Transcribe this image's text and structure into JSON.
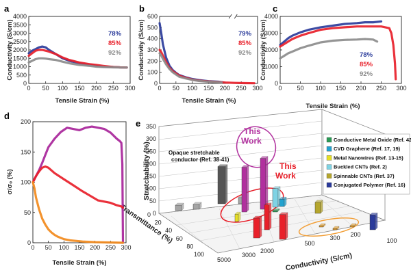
{
  "chart_data": [
    {
      "panel": "a",
      "type": "line",
      "xlabel": "Tensile Strain (%)",
      "ylabel": "Conductivity (S/cm)",
      "xlim": [
        0,
        300
      ],
      "ylim": [
        0,
        4000
      ],
      "xticks": [
        "0",
        "50",
        "100",
        "150",
        "200",
        "250",
        "300"
      ],
      "yticks": [
        "0",
        "500",
        "1000",
        "1500",
        "2000",
        "2500",
        "3000",
        "3500",
        "4000"
      ],
      "series": [
        {
          "name": "78%",
          "color": "#2b3c9b",
          "x": [
            0,
            10,
            20,
            30,
            40,
            50,
            60,
            80,
            100,
            120,
            150,
            180,
            200,
            220,
            250,
            270,
            290
          ],
          "y": [
            1800,
            1950,
            2050,
            2150,
            2200,
            2150,
            2000,
            1750,
            1500,
            1350,
            1200,
            1100,
            1050,
            1000,
            980,
            960,
            950
          ]
        },
        {
          "name": "85%",
          "color": "#e8202a",
          "x": [
            0,
            10,
            20,
            30,
            40,
            50,
            60,
            80,
            100,
            120,
            150,
            180,
            200,
            220,
            250,
            270,
            290
          ],
          "y": [
            1650,
            1800,
            1950,
            2000,
            2000,
            1950,
            1900,
            1750,
            1550,
            1400,
            1250,
            1150,
            1100,
            1050,
            980,
            960,
            950
          ]
        },
        {
          "name": "92%",
          "color": "#8c8c8c",
          "x": [
            0,
            10,
            20,
            30,
            40,
            50,
            60,
            80,
            100,
            120,
            150,
            180,
            200,
            220,
            250,
            270,
            290
          ],
          "y": [
            1250,
            1350,
            1450,
            1500,
            1500,
            1480,
            1450,
            1400,
            1300,
            1200,
            1100,
            1050,
            1000,
            980,
            960,
            950,
            950
          ]
        }
      ]
    },
    {
      "panel": "b",
      "type": "line",
      "xlabel": "Tensile Strain (%)",
      "ylabel": "Conductivity (S/cm)",
      "xlim": [
        0,
        300
      ],
      "ylim": [
        0,
        600
      ],
      "axis_break": true,
      "xticks": [
        "0",
        "50",
        "100",
        "150",
        "200",
        "250",
        "300"
      ],
      "yticks": [
        "0",
        "100",
        "200",
        "300",
        "400",
        "500",
        "600"
      ],
      "series": [
        {
          "name": "79%",
          "color": "#2b3c9b",
          "x": [
            0,
            5,
            10,
            20,
            30,
            40,
            50,
            60,
            80,
            100,
            120,
            150,
            180,
            195
          ],
          "y": [
            540,
            450,
            350,
            230,
            160,
            120,
            95,
            75,
            55,
            40,
            30,
            20,
            15,
            10
          ]
        },
        {
          "name": "85%",
          "color": "#e8202a",
          "x": [
            0,
            5,
            10,
            20,
            30,
            40,
            50,
            60,
            80,
            100,
            120,
            150,
            180,
            200,
            230,
            260,
            290
          ],
          "y": [
            300,
            280,
            250,
            190,
            140,
            110,
            90,
            70,
            50,
            35,
            25,
            18,
            12,
            8,
            5,
            3,
            2
          ]
        },
        {
          "name": "92%",
          "color": "#8c8c8c",
          "x": [
            0,
            5,
            10,
            20,
            30,
            40,
            50,
            60,
            80,
            100,
            120,
            150,
            180,
            190
          ],
          "y": [
            270,
            250,
            220,
            170,
            130,
            100,
            80,
            60,
            45,
            32,
            22,
            15,
            10,
            8
          ]
        }
      ]
    },
    {
      "panel": "c",
      "type": "line",
      "xlabel": "Tensile Strain (%)",
      "ylabel": "Conductivity (S/cm)",
      "xlim": [
        0,
        300
      ],
      "ylim": [
        0,
        4000
      ],
      "xticks": [
        "0",
        "50",
        "100",
        "150",
        "200",
        "250",
        "300"
      ],
      "yticks": [
        "0",
        "1000",
        "2000",
        "3000",
        "4000"
      ],
      "series": [
        {
          "name": "78%",
          "color": "#2b3c9b",
          "x": [
            0,
            10,
            20,
            30,
            50,
            70,
            100,
            130,
            160,
            190,
            210,
            230,
            250
          ],
          "y": [
            2300,
            2500,
            2700,
            2850,
            3050,
            3200,
            3350,
            3450,
            3550,
            3600,
            3650,
            3650,
            3700
          ]
        },
        {
          "name": "85%",
          "color": "#e8202a",
          "x": [
            0,
            10,
            20,
            30,
            50,
            70,
            100,
            130,
            160,
            190,
            210,
            230,
            250,
            260,
            270,
            275,
            280,
            284,
            286
          ],
          "y": [
            2200,
            2350,
            2500,
            2650,
            2850,
            3000,
            3200,
            3300,
            3350,
            3400,
            3400,
            3400,
            3400,
            3350,
            3300,
            3000,
            2300,
            1200,
            250
          ]
        },
        {
          "name": "92%",
          "color": "#8c8c8c",
          "x": [
            0,
            10,
            20,
            30,
            50,
            70,
            100,
            130,
            160,
            190,
            210,
            230,
            240
          ],
          "y": [
            1500,
            1650,
            1800,
            1900,
            2100,
            2250,
            2450,
            2550,
            2600,
            2620,
            2650,
            2620,
            2500
          ]
        }
      ]
    },
    {
      "panel": "d",
      "type": "line",
      "xlabel": "Tensile Strain (%)",
      "ylabel": "σ/σ₀ (%)",
      "xlim": [
        0,
        300
      ],
      "ylim": [
        0,
        200
      ],
      "xticks": [
        "0",
        "50",
        "100",
        "150",
        "200",
        "250",
        "300"
      ],
      "yticks": [
        "0",
        "50",
        "100",
        "150",
        "200"
      ],
      "series": [
        {
          "color": "#a8259a",
          "x": [
            0,
            10,
            20,
            30,
            40,
            50,
            70,
            90,
            110,
            130,
            150,
            170,
            190,
            210,
            230,
            250,
            270,
            280,
            285,
            288,
            290
          ],
          "y": [
            100,
            110,
            120,
            132,
            145,
            158,
            172,
            183,
            190,
            188,
            186,
            190,
            192,
            190,
            188,
            182,
            172,
            168,
            165,
            130,
            0
          ]
        },
        {
          "color": "#e8202a",
          "x": [
            0,
            10,
            20,
            30,
            40,
            50,
            70,
            100,
            130,
            160,
            190,
            210,
            230,
            250,
            270,
            285,
            290
          ],
          "y": [
            100,
            110,
            118,
            124,
            126,
            124,
            115,
            105,
            95,
            85,
            76,
            70,
            68,
            66,
            62,
            60,
            58
          ]
        },
        {
          "color": "#f28a1c",
          "x": [
            0,
            5,
            10,
            20,
            30,
            40,
            50,
            60,
            70,
            80,
            100,
            120,
            140,
            160,
            200,
            250,
            290
          ],
          "y": [
            100,
            90,
            75,
            55,
            40,
            30,
            22,
            17,
            13,
            10,
            6,
            4,
            3,
            2,
            1,
            0.5,
            0
          ]
        }
      ]
    },
    {
      "panel": "e",
      "type": "bar",
      "xlabel": "Conductivity (S/cm)",
      "ylabel": "Transmittance (%)",
      "zlabel": "Stretchability (%)",
      "z_ticks": [
        "0",
        "50",
        "100",
        "150",
        "200",
        "250",
        "300",
        "350"
      ],
      "t_ticks": [
        "100",
        "80",
        "60",
        "40",
        "20",
        "0"
      ],
      "c_ticks": [
        "5000",
        "3000",
        "2000",
        "500",
        "300",
        "200",
        "100"
      ],
      "annotations": [
        {
          "text": "This",
          "text2": "Work",
          "color": "#b1309e"
        },
        {
          "text": "This",
          "text2": "Work",
          "color": "#e8202a"
        },
        {
          "text": "Opaque stretchable",
          "text2": "conductor (Ref. 38-41)",
          "color": "#111111"
        }
      ],
      "legend": [
        {
          "label": "Conductive Metal Oxide (Ref. 42)",
          "color": "#2a9a55"
        },
        {
          "label": "CVD Graphene (Ref. 17, 19)",
          "color": "#22a2cf"
        },
        {
          "label": "Metal Nanowires (Ref. 13-15)",
          "color": "#e6df25"
        },
        {
          "label": "Buckled CNTs (Ref. 2)",
          "color": "#7fd3e4"
        },
        {
          "label": "Spinnable CNTs (Ref. 37)",
          "color": "#b5a62d"
        },
        {
          "label": "Conjugated Polymer (Ref. 16)",
          "color": "#2a3a9b"
        }
      ],
      "bars": [
        {
          "group": "opaque",
          "color": "#555555",
          "stretch": 150
        },
        {
          "group": "opaque",
          "color": "#a5a5a5",
          "stretch": 22
        },
        {
          "group": "opaque",
          "color": "#a5a5a5",
          "stretch": 20
        },
        {
          "group": "opaque",
          "color": "#a5a5a5",
          "stretch": 25
        },
        {
          "group": "this-work-magenta",
          "color": "#b1309e",
          "stretch": 205
        },
        {
          "group": "this-work-magenta",
          "color": "#b1309e",
          "stretch": 180
        },
        {
          "group": "this-work-red",
          "color": "#e8202a",
          "stretch": 80
        },
        {
          "group": "this-work-red",
          "color": "#e8202a",
          "stretch": 100
        },
        {
          "group": "this-work-red",
          "color": "#e8202a",
          "stretch": 100
        },
        {
          "group": "buckled",
          "color": "#7fd3e4",
          "stretch": 75
        },
        {
          "group": "graphene",
          "color": "#22a2cf",
          "stretch": 30
        },
        {
          "group": "nanowires",
          "color": "#e6df25",
          "stretch": 30
        },
        {
          "group": "spinnable",
          "color": "#b5a62d",
          "stretch": 45
        },
        {
          "group": "polymer",
          "color": "#2a3a9b",
          "stretch": 60
        },
        {
          "group": "metal-oxide",
          "color": "#2a9a55",
          "stretch": 2
        },
        {
          "group": "spinnable-small",
          "color": "#e8a02a",
          "stretch": 3
        },
        {
          "group": "spinnable-small",
          "color": "#e8a02a",
          "stretch": 3
        },
        {
          "group": "spinnable-small",
          "color": "#e8a02a",
          "stretch": 3
        }
      ]
    }
  ]
}
